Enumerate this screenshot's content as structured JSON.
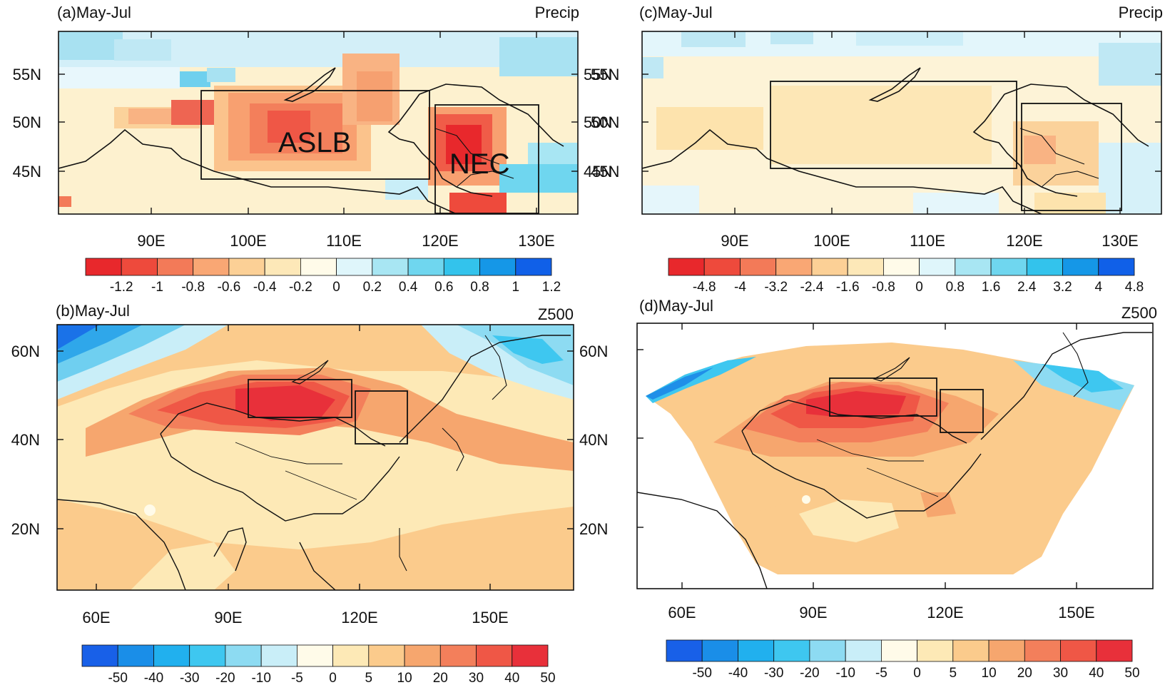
{
  "panels": [
    {
      "id": "a",
      "title": "(a)May-Jul",
      "variable": "Precip",
      "x_ticks": [
        "90E",
        "100E",
        "110E",
        "120E",
        "130E"
      ],
      "y_ticks": [
        "55N",
        "50N",
        "45N"
      ],
      "colorbar_labels": [
        "-1.2",
        "-1",
        "-0.8",
        "-0.6",
        "-0.4",
        "-0.2",
        "0",
        "0.2",
        "0.4",
        "0.6",
        "0.8",
        "1",
        "1.2"
      ],
      "region_labels": [
        "ASLB",
        "NEC"
      ]
    },
    {
      "id": "b",
      "title": "(b)May-Jul",
      "variable": "Z500",
      "x_ticks": [
        "60E",
        "90E",
        "120E",
        "150E"
      ],
      "y_ticks": [
        "60N",
        "40N",
        "20N"
      ],
      "colorbar_labels": [
        "-50",
        "-40",
        "-30",
        "-20",
        "-10",
        "-5",
        "0",
        "5",
        "10",
        "20",
        "30",
        "40",
        "50"
      ]
    },
    {
      "id": "c",
      "title": "(c)May-Jul",
      "variable": "Precip",
      "x_ticks": [
        "90E",
        "100E",
        "110E",
        "120E",
        "130E"
      ],
      "y_ticks": [
        "55N",
        "50N",
        "45N"
      ],
      "colorbar_labels": [
        "-4.8",
        "-4",
        "-3.2",
        "-2.4",
        "-1.6",
        "-0.8",
        "0",
        "0.8",
        "1.6",
        "2.4",
        "3.2",
        "4",
        "4.8"
      ]
    },
    {
      "id": "d",
      "title": "(d)May-Jul",
      "variable": "Z500",
      "x_ticks": [
        "60E",
        "90E",
        "120E",
        "150E"
      ],
      "y_ticks": [
        "60N",
        "40N",
        "20N"
      ],
      "colorbar_labels": [
        "-50",
        "-40",
        "-30",
        "-20",
        "-10",
        "-5",
        "0",
        "5",
        "10",
        "20",
        "30",
        "40",
        "50"
      ]
    }
  ],
  "colors": {
    "precip_scale": [
      "#e8282c",
      "#ee4a3c",
      "#f37a58",
      "#f9a774",
      "#fcd096",
      "#fde8b8",
      "#fffbe9",
      "#dff6fb",
      "#a8e6f3",
      "#6fd6ef",
      "#33c3ec",
      "#1597e7",
      "#1060e8"
    ],
    "z500_scale": [
      "#1860e8",
      "#1a8ee8",
      "#21b0ee",
      "#3ec7f0",
      "#8ddbf2",
      "#c9eef8",
      "#fffbe9",
      "#fde9b6",
      "#fbcb8c",
      "#f6a66e",
      "#f37f5b",
      "#ef5746",
      "#e8303a"
    ]
  }
}
